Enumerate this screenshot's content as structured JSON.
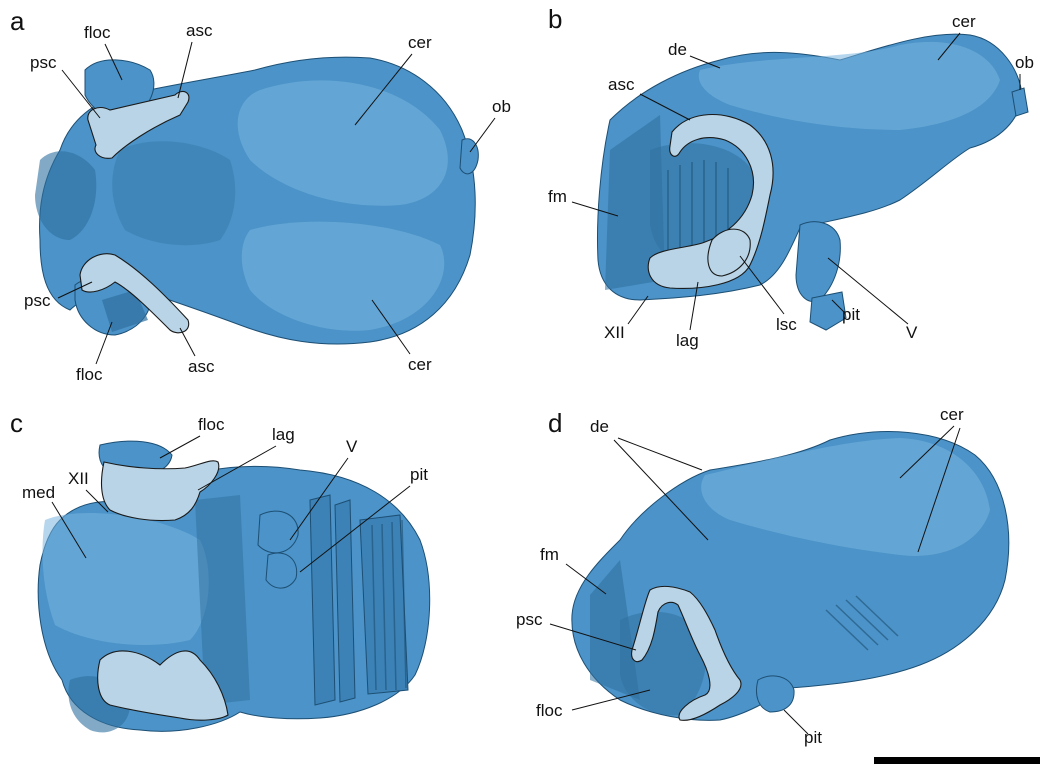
{
  "colors": {
    "endocast_blue": "#4b93c8",
    "endocast_shadow": "#2f6f9e",
    "inner_ear_fill": "#b8d4e6",
    "label_text": "#111111",
    "background": "#ffffff"
  },
  "panels": {
    "a": {
      "letter": "a",
      "labels": {
        "psc_top": "psc",
        "floc_top": "floc",
        "asc_top": "asc",
        "cer_top": "cer",
        "ob": "ob",
        "psc_bottom": "psc",
        "floc_bottom": "floc",
        "asc_bottom": "asc",
        "cer_bottom": "cer"
      }
    },
    "b": {
      "letter": "b",
      "labels": {
        "de": "de",
        "cer": "cer",
        "ob": "ob",
        "asc": "asc",
        "fm": "fm",
        "xii": "XII",
        "lag": "lag",
        "lsc": "lsc",
        "pit": "pit",
        "v": "V"
      }
    },
    "c": {
      "letter": "c",
      "labels": {
        "floc": "floc",
        "lag": "lag",
        "v": "V",
        "pit": "pit",
        "xii": "XII",
        "med": "med"
      }
    },
    "d": {
      "letter": "d",
      "labels": {
        "de": "de",
        "cer": "cer",
        "fm": "fm",
        "psc": "psc",
        "floc": "floc",
        "pit": "pit"
      }
    }
  },
  "scale_bar": {
    "visible": true
  }
}
